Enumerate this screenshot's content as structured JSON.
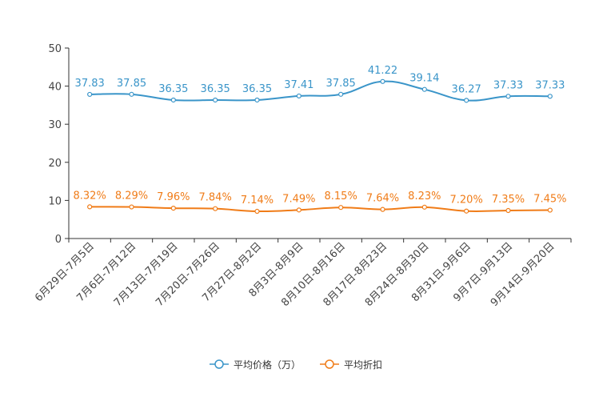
{
  "chart_data": {
    "type": "line",
    "title": "",
    "xlabel": "",
    "ylabel": "",
    "ylim": [
      0,
      50
    ],
    "yticks": [
      0,
      10,
      20,
      30,
      40,
      50
    ],
    "ytick_labels": [
      "0",
      "10",
      "20",
      "30",
      "40",
      "50"
    ],
    "grid": false,
    "legend_position": "bottom-center",
    "categories": [
      "6月29日-7月5日",
      "7月6日-7月12日",
      "7月13日-7月19日",
      "7月20日-7月26日",
      "7月27日-8月2日",
      "8月3日-8月9日",
      "8月10日-8月16日",
      "8月17日-8月23日",
      "8月24日-8月30日",
      "8月31日-9月6日",
      "9月7日-9月13日",
      "9月14日-9月20日"
    ],
    "series": [
      {
        "name": "平均价格（万）",
        "color": "#3a95c9",
        "smooth": true,
        "values": [
          37.83,
          37.85,
          36.35,
          36.35,
          36.35,
          37.41,
          37.85,
          41.22,
          39.14,
          36.27,
          37.33,
          37.33
        ],
        "labels": [
          "37.83",
          "37.85",
          "36.35",
          "36.35",
          "36.35",
          "37.41",
          "37.85",
          "41.22",
          "39.14",
          "36.27",
          "37.33",
          "37.33"
        ]
      },
      {
        "name": "平均折扣",
        "color": "#f07c18",
        "smooth": true,
        "values": [
          8.32,
          8.29,
          7.96,
          7.84,
          7.14,
          7.49,
          8.15,
          7.64,
          8.23,
          7.2,
          7.35,
          7.45
        ],
        "labels": [
          "8.32%",
          "8.29%",
          "7.96%",
          "7.84%",
          "7.14%",
          "7.49%",
          "8.15%",
          "7.64%",
          "8.23%",
          "7.20%",
          "7.35%",
          "7.45%"
        ]
      }
    ]
  }
}
